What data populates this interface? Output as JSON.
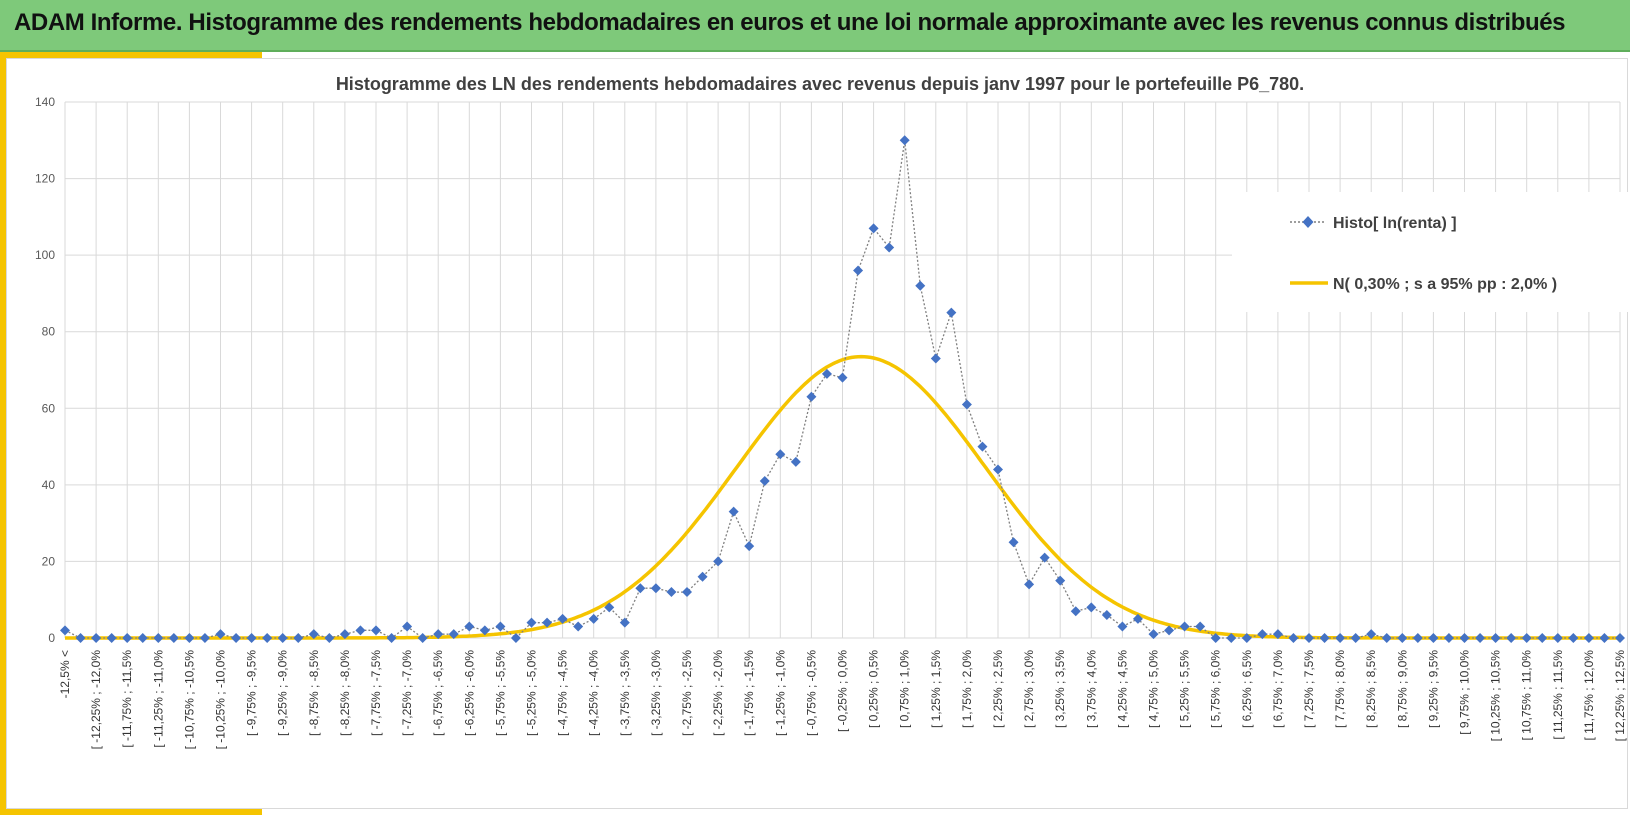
{
  "header": {
    "title": "ADAM Informe. Histogramme des rendements hebdomadaires en euros et une loi normale approximante avec les revenus connus distribués"
  },
  "colors": {
    "header_bg": "#7ec97a",
    "accent": "#f5c400",
    "histo": "#4472c4",
    "normal": "#f5c400"
  },
  "chart_data": {
    "type": "line",
    "title": "Histogramme des LN des rendements hebdomadaires avec revenus depuis janv 1997 pour le portefeuille P6_780.",
    "xlabel": "",
    "ylabel": "",
    "ylim": [
      0,
      140
    ],
    "yticks": [
      0,
      20,
      40,
      60,
      80,
      100,
      120,
      140
    ],
    "grid": true,
    "legend_position": "right",
    "categories": [
      "-12,5% <",
      "[ -12,25% ; -12,0%",
      "[ -11,75% ; -11,5%",
      "[ -11,25% ; -11,0%",
      "[ -10,75% ; -10,5%",
      "[ -10,25% ; -10,0%",
      "[ -9,75% ; -9,5%",
      "[ -9,25% ; -9,0%",
      "[ -8,75% ; -8,5%",
      "[ -8,25% ; -8,0%",
      "[ -7,75% ; -7,5%",
      "[ -7,25% ; -7,0%",
      "[ -6,75% ; -6,5%",
      "[ -6,25% ; -6,0%",
      "[ -5,75% ; -5,5%",
      "[ -5,25% ; -5,0%",
      "[ -4,75% ; -4,5%",
      "[ -4,25% ; -4,0%",
      "[ -3,75% ; -3,5%",
      "[ -3,25% ; -3,0%",
      "[ -2,75% ; -2,5%",
      "[ -2,25% ; -2,0%",
      "[ -1,75% ; -1,5%",
      "[ -1,25% ; -1,0%",
      "[ -0,75% ; -0,5%",
      "[ -0,25% ; 0,0%",
      "[ 0,25% ; 0,5%",
      "[ 0,75% ; 1,0%",
      "[ 1,25% ; 1,5%",
      "[ 1,75% ; 2,0%",
      "[ 2,25% ; 2,5%",
      "[ 2,75% ; 3,0%",
      "[ 3,25% ; 3,5%",
      "[ 3,75% ; 4,0%",
      "[ 4,25% ; 4,5%",
      "[ 4,75% ; 5,0%",
      "[ 5,25% ; 5,5%",
      "[ 5,75% ; 6,0%",
      "[ 6,25% ; 6,5%",
      "[ 6,75% ; 7,0%",
      "[ 7,25% ; 7,5%",
      "[ 7,75% ; 8,0%",
      "[ 8,25% ; 8,5%",
      "[ 8,75% ; 9,0%",
      "[ 9,25% ; 9,5%",
      "[ 9,75% ; 10,0%",
      "[ 10,25% ; 10,5%",
      "[ 10,75% ; 11,0%",
      "[ 11,25% ; 11,5%",
      "[ 11,75% ; 12,0%",
      "[ 12,25% ; 12,5%"
    ],
    "x": [
      -12.5,
      -12.25,
      -12.0,
      -11.75,
      -11.5,
      -11.25,
      -11.0,
      -10.75,
      -10.5,
      -10.25,
      -10.0,
      -9.75,
      -9.5,
      -9.25,
      -9.0,
      -8.75,
      -8.5,
      -8.25,
      -8.0,
      -7.75,
      -7.5,
      -7.25,
      -7.0,
      -6.75,
      -6.5,
      -6.25,
      -6.0,
      -5.75,
      -5.5,
      -5.25,
      -5.0,
      -4.75,
      -4.5,
      -4.25,
      -4.0,
      -3.75,
      -3.5,
      -3.25,
      -3.0,
      -2.75,
      -2.5,
      -2.25,
      -2.0,
      -1.75,
      -1.5,
      -1.25,
      -1.0,
      -0.75,
      -0.5,
      -0.25,
      0.0,
      0.25,
      0.5,
      0.75,
      1.0,
      1.25,
      1.5,
      1.75,
      2.0,
      2.25,
      2.5,
      2.75,
      3.0,
      3.25,
      3.5,
      3.75,
      4.0,
      4.25,
      4.5,
      4.75,
      5.0,
      5.25,
      5.5,
      5.75,
      6.0,
      6.25,
      6.5,
      6.75,
      7.0,
      7.25,
      7.5,
      7.75,
      8.0,
      8.25,
      8.5,
      8.75,
      9.0,
      9.25,
      9.5,
      9.75,
      10.0,
      10.25,
      10.5,
      10.75,
      11.0,
      11.25,
      11.5,
      11.75,
      12.0,
      12.25,
      12.5
    ],
    "series": [
      {
        "name": "Histo[ ln(renta) ]",
        "style": "dotted-diamond",
        "values": [
          2,
          0,
          0,
          0,
          0,
          0,
          0,
          0,
          0,
          0,
          1,
          0,
          0,
          0,
          0,
          0,
          1,
          0,
          1,
          2,
          2,
          0,
          3,
          0,
          1,
          1,
          3,
          2,
          3,
          0,
          4,
          4,
          5,
          3,
          5,
          8,
          4,
          13,
          13,
          12,
          12,
          16,
          20,
          33,
          24,
          41,
          48,
          46,
          63,
          69,
          68,
          96,
          107,
          102,
          130,
          92,
          73,
          85,
          61,
          50,
          44,
          25,
          14,
          21,
          15,
          7,
          8,
          6,
          3,
          5,
          1,
          2,
          3,
          3,
          0,
          0,
          0,
          1,
          1,
          0,
          0,
          0,
          0,
          0,
          1,
          0,
          0,
          0,
          0,
          0,
          0,
          0,
          0,
          0,
          0,
          0,
          0,
          0,
          0,
          0,
          0
        ]
      },
      {
        "name": "N( 0,30% ; s a 95% pp : 2,0% )",
        "style": "smooth-line",
        "mean": 0.3,
        "sd": 2.0,
        "peak": 73.5
      }
    ]
  }
}
